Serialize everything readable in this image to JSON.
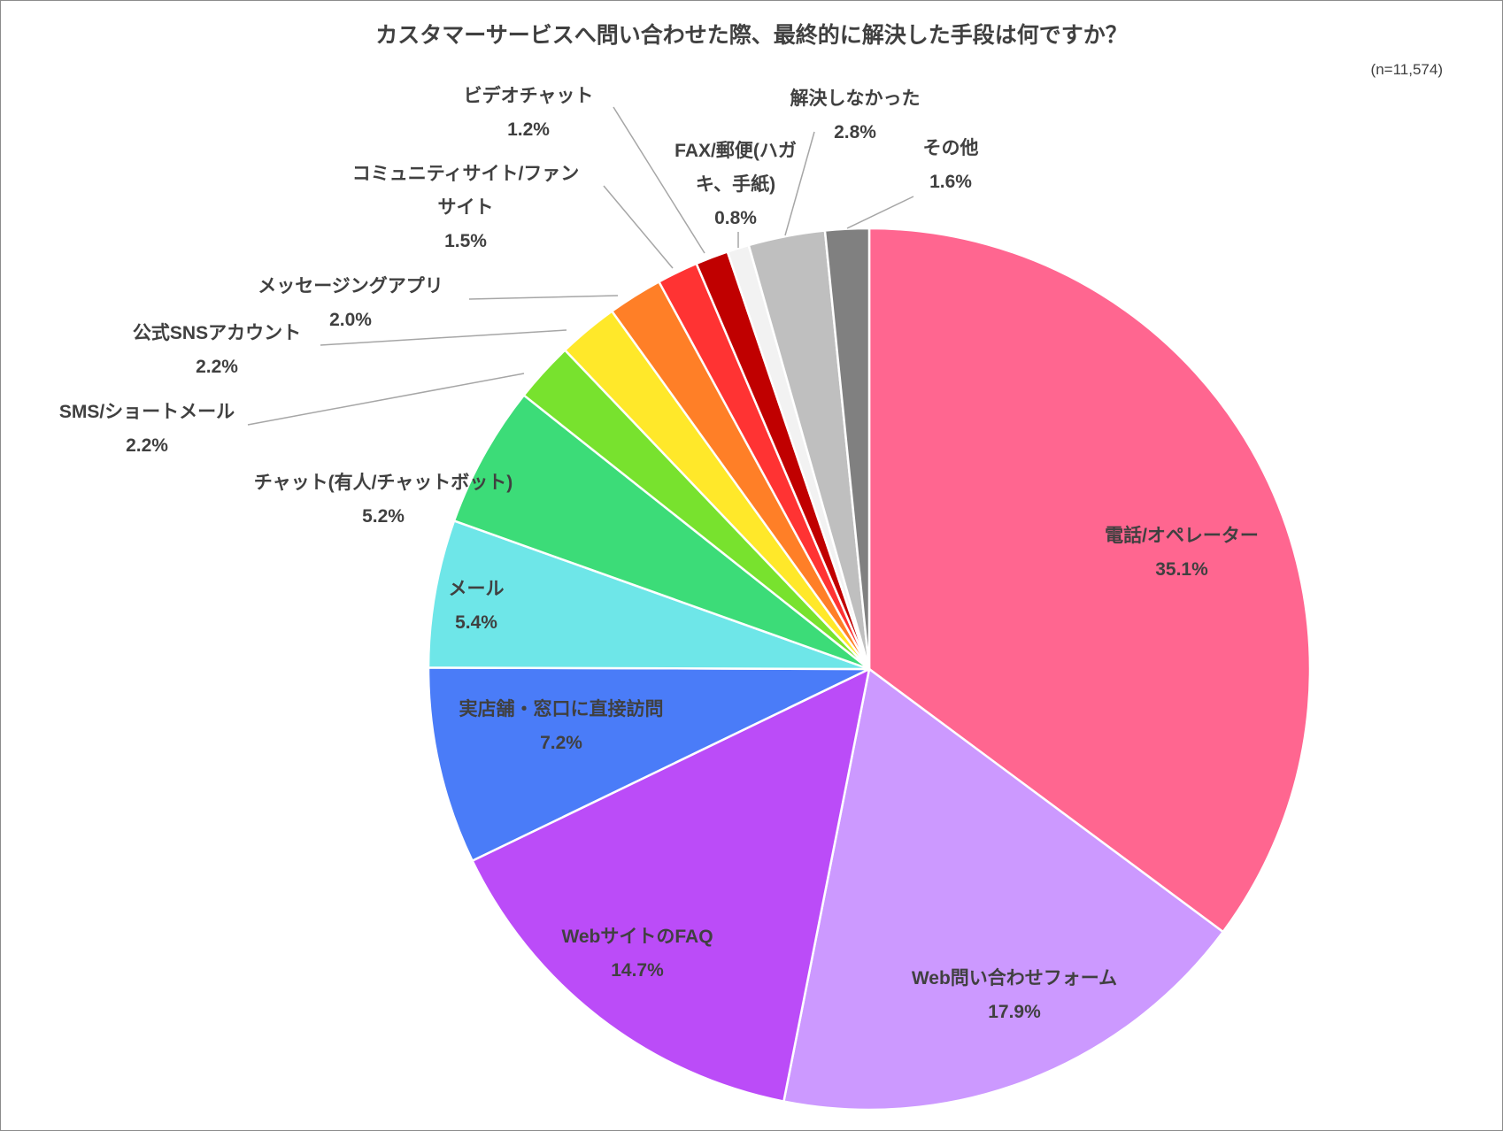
{
  "chart_data": {
    "type": "pie",
    "title": "カスタマーサービスへ問い合わせた際、最終的に解決した手段は何ですか？",
    "note": "(n=11,574)",
    "start_angle_deg": 0,
    "direction": "clockwise",
    "slices": [
      {
        "label": "電話/オペレーター",
        "value": 35.1,
        "value_label": "35.1%",
        "color": "#ff6690"
      },
      {
        "label": "Web問い合わせフォーム",
        "value": 17.9,
        "value_label": "17.9%",
        "color": "#cc99ff"
      },
      {
        "label": "WebサイトのFAQ",
        "value": 14.7,
        "value_label": "14.7%",
        "color": "#bb4cf8"
      },
      {
        "label": "実店舗・窓口に直接訪問",
        "value": 7.2,
        "value_label": "7.2%",
        "color": "#4a7cf8"
      },
      {
        "label": "メール",
        "value": 5.4,
        "value_label": "5.4%",
        "color": "#6ee6e8"
      },
      {
        "label": "チャット(有人/チャットボット)",
        "value": 5.2,
        "value_label": "5.2%",
        "color": "#3cdc78"
      },
      {
        "label": "SMS/ショートメール",
        "value": 2.2,
        "value_label": "2.2%",
        "color": "#78e22e"
      },
      {
        "label": "公式SNSアカウント",
        "value": 2.2,
        "value_label": "2.2%",
        "color": "#ffe82a"
      },
      {
        "label": "メッセージングアプリ",
        "value": 2.0,
        "value_label": "2.0%",
        "color": "#ff7f27"
      },
      {
        "label": "コミュニティサイト/ファンサイト",
        "label_lines": [
          "コミュニティサイト/ファン",
          "サイト"
        ],
        "value": 1.5,
        "value_label": "1.5%",
        "color": "#ff3333"
      },
      {
        "label": "ビデオチャット",
        "value": 1.2,
        "value_label": "1.2%",
        "color": "#c00000"
      },
      {
        "label": "FAX/郵便(ハガキ、手紙)",
        "label_lines": [
          "FAX/郵便(ハガ",
          "キ、手紙)"
        ],
        "value": 0.8,
        "value_label": "0.8%",
        "color": "#f2f2f2"
      },
      {
        "label": "解決しなかった",
        "value": 2.8,
        "value_label": "2.8%",
        "color": "#bfbfbf"
      },
      {
        "label": "その他",
        "value": 1.6,
        "value_label": "1.6%",
        "color": "#808080"
      }
    ]
  }
}
